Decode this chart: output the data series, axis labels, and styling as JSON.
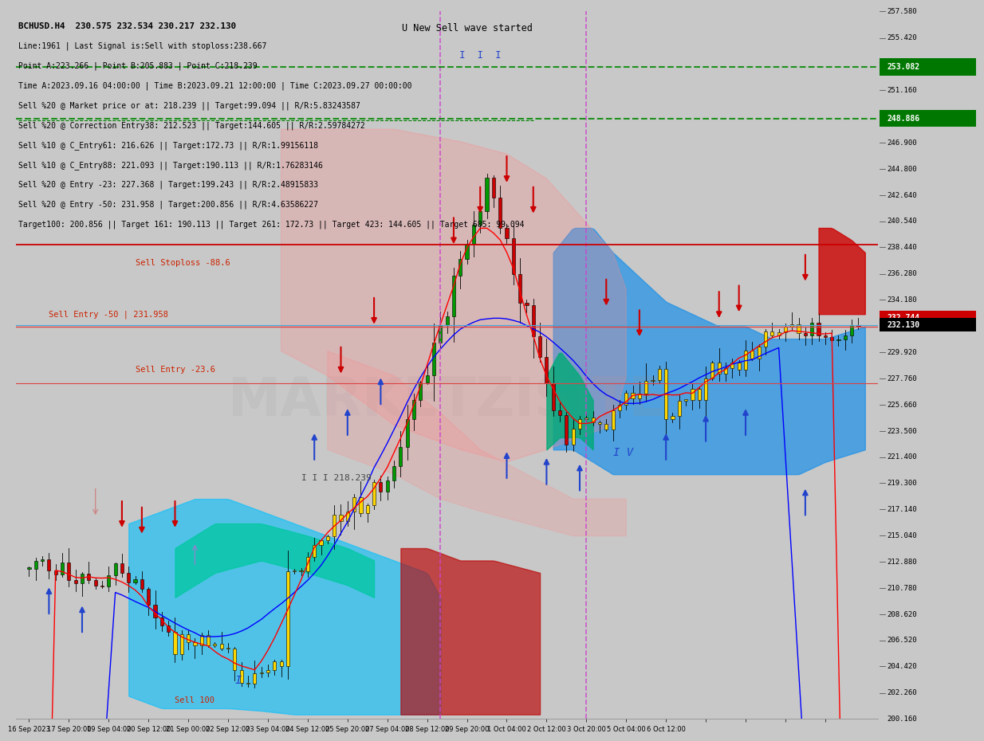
{
  "title": "BCHUSD.H4  230.575 232.534 230.217 232.130",
  "info_lines": [
    "Line:1961 | Last Signal is:Sell with stoploss:238.667",
    "Point A:223.266 | Point B:205.883 | Point C:218.239",
    "Time A:2023.09.16 04:00:00 | Time B:2023.09.21 12:00:00 | Time C:2023.09.27 00:00:00",
    "Sell %20 @ Market price or at: 218.239 || Target:99.094 || R/R:5.83243587",
    "Sell %20 @ Correction Entry38: 212.523 || Target:144.605 || R/R:2.59784272",
    "Sell %10 @ C_Entry61: 216.626 || Target:172.73 || R/R:1.99156118",
    "Sell %10 @ C_Entry88: 221.093 || Target:190.113 || R/R:1.76283146",
    "Sell %20 @ Entry -23: 227.368 | Target:199.243 || R/R:2.48915833",
    "Sell %20 @ Entry -50: 231.958 | Target:200.856 || R/R:4.63586227",
    "Target100: 200.856 || Target 161: 190.113 || Target 261: 172.73 || Target 423: 144.605 || Target 685: 99.094"
  ],
  "y_min": 200.16,
  "y_max": 257.58,
  "price_labels": [
    257.58,
    255.42,
    253.082,
    251.16,
    248.886,
    246.9,
    244.8,
    242.64,
    240.54,
    238.44,
    236.28,
    234.18,
    232.744,
    232.13,
    229.92,
    227.76,
    225.66,
    223.5,
    221.4,
    219.3,
    217.14,
    215.04,
    212.88,
    210.78,
    208.62,
    206.52,
    204.42,
    202.26,
    200.16
  ],
  "current_price": 232.13,
  "current_price2": 232.744,
  "stoploss_line": 238.667,
  "sell_entry_50_line": 231.958,
  "sell_entry_23_line": 227.368,
  "target_green1": 253.082,
  "target_green2": 248.886,
  "bg_color": "#c8c8c8",
  "watermark_text": "MARKETZISITE",
  "n_bars": 126,
  "x_tick_positions": [
    0,
    6,
    12,
    18,
    24,
    30,
    36,
    42,
    48,
    54,
    60,
    66,
    72,
    78,
    84,
    90,
    96,
    102,
    108,
    114,
    120
  ],
  "x_tick_labels": [
    "16 Sep 2023",
    "17 Sep 20:00",
    "19 Sep 04:00",
    "20 Sep 12:00",
    "21 Sep 00:00",
    "22 Sep 12:00",
    "23 Sep 04:00",
    "24 Sep 12:00",
    "25 Sep 20:00",
    "27 Sep 04:00",
    "28 Sep 12:00",
    "29 Sep 20:00",
    "1 Oct 04:00",
    "2 Oct 12:00",
    "3 Oct 20:00",
    "5 Oct 04:00",
    "6 Oct 12:00",
    "",
    "",
    "",
    ""
  ]
}
